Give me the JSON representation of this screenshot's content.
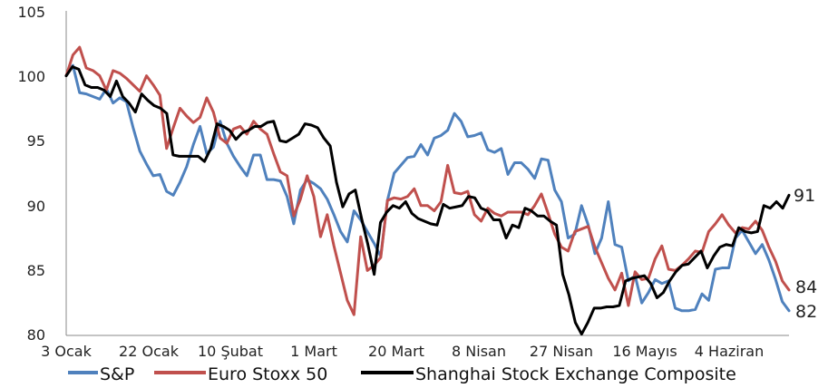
{
  "chart_data": {
    "type": "line",
    "title": "",
    "xlabel": "",
    "ylabel": "",
    "ylim": [
      80,
      105
    ],
    "y_ticks": [
      "80",
      "85",
      "90",
      "95",
      "100",
      "105"
    ],
    "x_ticks": [
      "3 Ocak",
      "22 Ocak",
      "10 Şubat",
      "1 Mart",
      "20 Mart",
      "8 Nisan",
      "27 Nisan",
      "16 Mayıs",
      "4 Haziran"
    ],
    "grid": false,
    "legend_position": "bottom",
    "series": [
      {
        "name": "S&P",
        "color": "#4f81bd",
        "end_label": "82",
        "values": [
          100.0,
          100.8,
          98.7,
          98.6,
          98.4,
          98.2,
          99.0,
          97.9,
          98.3,
          98.0,
          96.0,
          94.2,
          93.2,
          92.3,
          92.4,
          91.1,
          90.8,
          91.8,
          93.0,
          94.7,
          96.1,
          94.0,
          94.5,
          96.5,
          94.8,
          93.8,
          93.0,
          92.3,
          93.9,
          93.9,
          92.0,
          92.0,
          91.9,
          90.7,
          88.6,
          91.2,
          92.0,
          91.7,
          91.3,
          90.5,
          89.3,
          88.0,
          87.2,
          89.6,
          88.9,
          88.0,
          87.1,
          86.1,
          90.4,
          92.5,
          93.1,
          93.7,
          93.8,
          94.7,
          93.9,
          95.2,
          95.4,
          95.8,
          97.1,
          96.5,
          95.3,
          95.4,
          95.6,
          94.3,
          94.1,
          94.4,
          92.4,
          93.3,
          93.3,
          92.8,
          92.1,
          93.6,
          93.5,
          91.2,
          90.3,
          87.5,
          87.8,
          90.0,
          88.5,
          86.3,
          87.5,
          90.3,
          87.0,
          86.8,
          84.2,
          84.6,
          82.5,
          83.3,
          84.3,
          84.0,
          84.2,
          82.1,
          81.9,
          81.9,
          82.0,
          83.2,
          82.7,
          85.1,
          85.2,
          85.2,
          87.5,
          88.1,
          87.2,
          86.3,
          87.0,
          85.8,
          84.3,
          82.6,
          81.9
        ]
      },
      {
        "name": "Euro Stoxx 50",
        "color": "#c0504d",
        "end_label": "84",
        "values": [
          100.0,
          101.6,
          102.2,
          100.6,
          100.4,
          100.0,
          98.9,
          100.4,
          100.2,
          99.8,
          99.3,
          98.8,
          100.0,
          99.3,
          98.5,
          94.4,
          96.0,
          97.5,
          96.9,
          96.4,
          96.8,
          98.3,
          97.2,
          95.2,
          94.8,
          95.9,
          96.1,
          95.5,
          96.5,
          95.9,
          95.5,
          94.0,
          92.6,
          92.3,
          89.2,
          90.5,
          92.3,
          90.7,
          87.6,
          89.3,
          86.9,
          84.8,
          82.7,
          81.6,
          87.6,
          85.0,
          85.4,
          86.0,
          90.4,
          90.6,
          90.5,
          90.7,
          91.3,
          90.0,
          90.0,
          89.6,
          90.3,
          93.1,
          91.0,
          90.9,
          91.1,
          89.3,
          88.8,
          89.8,
          89.4,
          89.2,
          89.5,
          89.5,
          89.5,
          89.3,
          90.0,
          90.9,
          89.4,
          87.8,
          86.8,
          86.5,
          88.0,
          88.2,
          88.4,
          86.8,
          85.6,
          84.4,
          83.5,
          84.8,
          82.3,
          84.9,
          84.3,
          84.4,
          85.9,
          86.9,
          85.1,
          85.0,
          85.4,
          85.9,
          86.5,
          86.4,
          88.0,
          88.6,
          89.3,
          88.5,
          87.9,
          88.3,
          88.2,
          88.8,
          88.1,
          86.8,
          85.7,
          84.2,
          83.5
        ]
      },
      {
        "name": "Shanghai Stock Exchange Composite",
        "color": "#000000",
        "end_label": "91",
        "values": [
          100.0,
          100.7,
          100.5,
          99.3,
          99.1,
          99.1,
          98.9,
          98.4,
          99.6,
          98.4,
          97.9,
          97.2,
          98.6,
          98.1,
          97.7,
          97.5,
          97.1,
          93.9,
          93.8,
          93.8,
          93.8,
          93.8,
          93.4,
          94.4,
          96.3,
          96.1,
          95.8,
          95.1,
          95.6,
          95.8,
          96.1,
          96.1,
          96.4,
          96.5,
          95.0,
          94.9,
          95.2,
          95.5,
          96.3,
          96.2,
          96.0,
          95.2,
          94.6,
          91.8,
          89.9,
          90.9,
          91.2,
          89.0,
          87.0,
          84.7,
          88.7,
          89.5,
          90.0,
          89.8,
          90.3,
          89.4,
          89.0,
          88.8,
          88.6,
          88.5,
          90.1,
          89.8,
          89.9,
          90.0,
          90.7,
          90.6,
          89.8,
          89.6,
          88.9,
          88.9,
          87.5,
          88.5,
          88.3,
          89.8,
          89.6,
          89.2,
          89.2,
          88.8,
          88.5,
          84.7,
          83.1,
          81.0,
          80.1,
          81.0,
          82.1,
          82.1,
          82.2,
          82.2,
          82.3,
          84.2,
          84.4,
          84.5,
          84.6,
          84.0,
          82.9,
          83.3,
          84.2,
          84.9,
          85.4,
          85.5,
          86.0,
          86.5,
          85.2,
          86.1,
          86.8,
          87.0,
          86.9,
          88.3,
          88.0,
          87.9,
          88.0,
          90.0,
          89.8,
          90.3,
          89.8,
          90.8
        ]
      }
    ]
  }
}
